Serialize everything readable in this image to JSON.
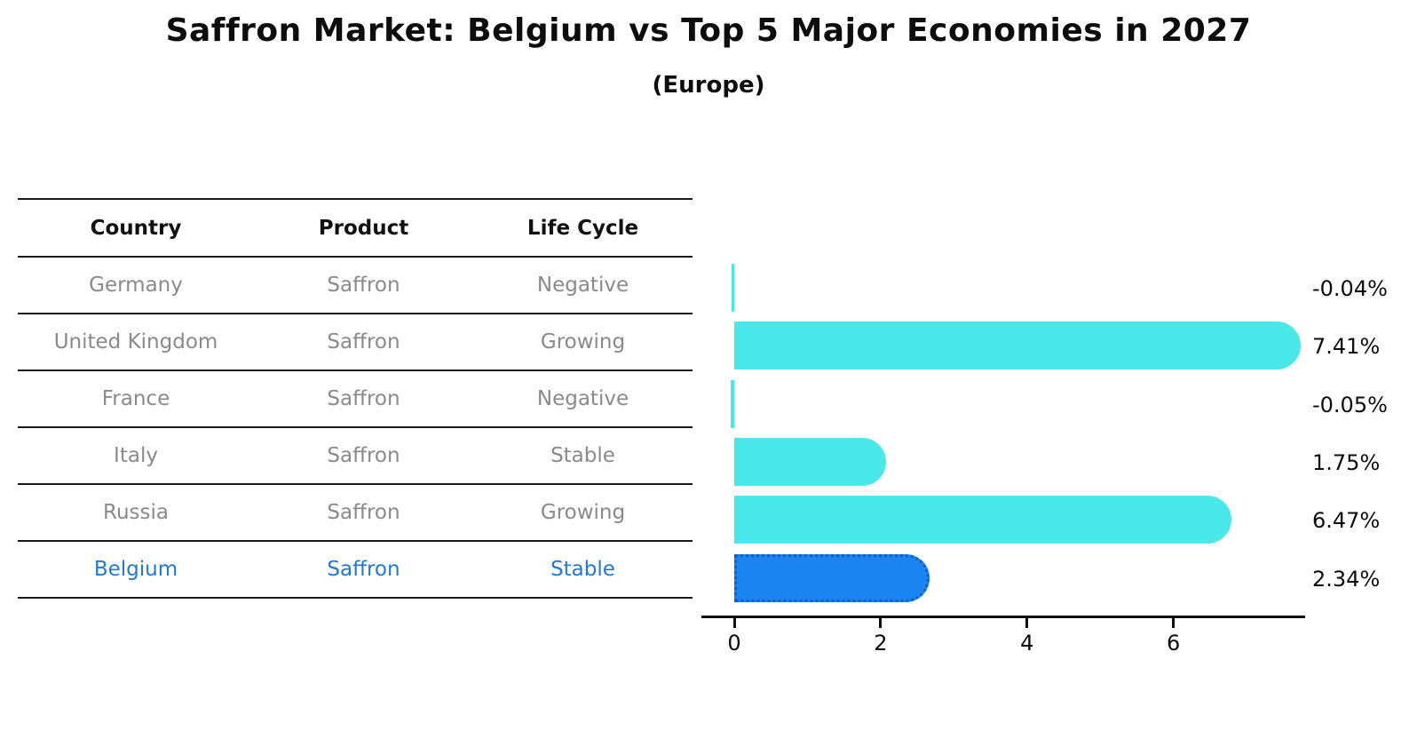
{
  "title": "Saffron Market: Belgium vs Top 5 Major Economies in 2027",
  "subtitle": "(Europe)",
  "table": {
    "columns": [
      "Country",
      "Product",
      "Life Cycle"
    ],
    "rows": [
      {
        "country": "Germany",
        "product": "Saffron",
        "life_cycle": "Negative",
        "highlight": false
      },
      {
        "country": "United Kingdom",
        "product": "Saffron",
        "life_cycle": "Growing",
        "highlight": false
      },
      {
        "country": "France",
        "product": "Saffron",
        "life_cycle": "Negative",
        "highlight": false
      },
      {
        "country": "Italy",
        "product": "Saffron",
        "life_cycle": "Stable",
        "highlight": false
      },
      {
        "country": "Russia",
        "product": "Saffron",
        "life_cycle": "Growing",
        "highlight": false
      },
      {
        "country": "Belgium",
        "product": "Saffron",
        "life_cycle": "Stable",
        "highlight": true
      }
    ],
    "text_color": "#8a8a8a",
    "header_color": "#111111",
    "highlight_color": "#2479cc"
  },
  "chart_data": {
    "type": "bar",
    "orientation": "horizontal",
    "title": "Saffron Market: Belgium vs Top 5 Major Economies in 2027",
    "subtitle": "(Europe)",
    "categories": [
      "Germany",
      "United Kingdom",
      "France",
      "Italy",
      "Russia",
      "Belgium"
    ],
    "values": [
      -0.04,
      7.41,
      -0.05,
      1.75,
      6.47,
      2.34
    ],
    "value_labels": [
      "-0.04%",
      "7.41%",
      "-0.05%",
      "1.75%",
      "6.47%",
      "2.34%"
    ],
    "x_ticks": [
      0,
      2,
      4,
      6
    ],
    "xlim": [
      -0.1,
      7.8
    ],
    "xlabel": "",
    "ylabel": "",
    "grid": false,
    "legend_position": "none",
    "bar_color_default": "#4ae8e8",
    "bar_color_highlight": "#1a84f0",
    "bar_border_highlight": "#0d5fd0",
    "highlight_index": 5
  }
}
